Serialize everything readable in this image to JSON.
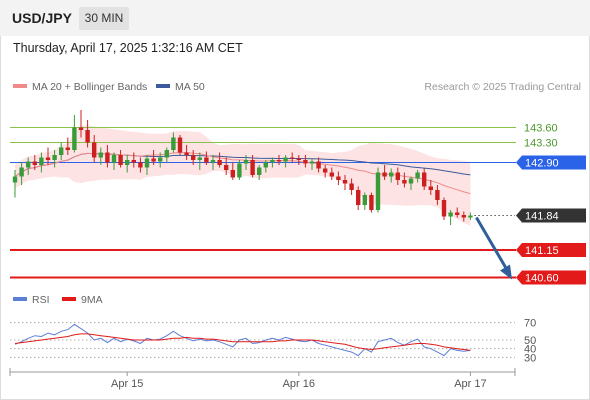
{
  "header": {
    "pair": "USD/JPY",
    "timeframe": "30 MIN",
    "timestamp": "Thursday, April 17, 2025 1:32:16 AM CET"
  },
  "colors": {
    "candle_up": "#3a9b3a",
    "candle_down": "#cc2020",
    "ma20": "#f08a8a",
    "bollinger_fill": "#fde3e3",
    "ma50": "#3d5a9c",
    "rsi": "#5b7fd6",
    "rsi_ma": "#e31a1a",
    "resistance_green": "#8bc34a",
    "pivot_blue": "#2a62e8",
    "support_red": "#e31a1a",
    "arrow": "#2f5f9a",
    "current_price_label": "#333333"
  },
  "chart_data": [
    {
      "type": "candlestick",
      "title": "USD/JPY 30 MIN",
      "legend": [
        {
          "name": "MA 20 + Bollinger Bands",
          "color": "#f08a8a"
        },
        {
          "name": "MA 50",
          "color": "#3d5a9c"
        }
      ],
      "source": "Research © 2025 Trading Central",
      "x_labels": [
        "Apr 15",
        "Apr 16",
        "Apr 17"
      ],
      "ylim": [
        140.45,
        144.15
      ],
      "candles": [
        [
          142.5,
          142.75,
          142.2,
          142.62
        ],
        [
          142.62,
          142.9,
          142.45,
          142.8
        ],
        [
          142.8,
          143.0,
          142.65,
          142.92
        ],
        [
          142.92,
          143.05,
          142.75,
          142.85
        ],
        [
          142.85,
          143.1,
          142.7,
          143.0
        ],
        [
          143.0,
          143.2,
          142.85,
          142.95
        ],
        [
          142.95,
          143.15,
          142.8,
          143.05
        ],
        [
          143.05,
          143.3,
          142.95,
          143.2
        ],
        [
          143.2,
          143.4,
          143.05,
          143.15
        ],
        [
          143.15,
          143.85,
          143.1,
          143.6
        ],
        [
          143.6,
          143.95,
          143.4,
          143.55
        ],
        [
          143.55,
          143.75,
          143.2,
          143.3
        ],
        [
          143.3,
          143.45,
          142.9,
          143.0
        ],
        [
          143.0,
          143.2,
          142.85,
          143.1
        ],
        [
          143.1,
          143.25,
          142.8,
          142.9
        ],
        [
          142.9,
          143.1,
          142.75,
          143.05
        ],
        [
          143.05,
          143.15,
          142.8,
          142.85
        ],
        [
          142.85,
          143.05,
          142.7,
          142.95
        ],
        [
          142.95,
          143.1,
          142.8,
          142.9
        ],
        [
          142.9,
          143.0,
          142.7,
          142.8
        ],
        [
          142.8,
          143.05,
          142.65,
          142.98
        ],
        [
          142.98,
          143.15,
          142.85,
          142.92
        ],
        [
          142.92,
          143.1,
          142.8,
          143.0
        ],
        [
          143.0,
          143.2,
          142.9,
          143.15
        ],
        [
          143.15,
          143.5,
          143.1,
          143.4
        ],
        [
          143.4,
          143.45,
          143.05,
          143.1
        ],
        [
          143.1,
          143.25,
          142.95,
          143.05
        ],
        [
          143.05,
          143.15,
          142.85,
          142.95
        ],
        [
          142.95,
          143.1,
          142.75,
          143.0
        ],
        [
          143.0,
          143.12,
          142.85,
          142.9
        ],
        [
          142.9,
          143.05,
          142.75,
          142.95
        ],
        [
          142.95,
          143.1,
          142.8,
          142.85
        ],
        [
          142.85,
          143.0,
          142.65,
          142.75
        ],
        [
          142.75,
          142.9,
          142.55,
          142.6
        ],
        [
          142.6,
          142.95,
          142.55,
          142.88
        ],
        [
          142.88,
          143.05,
          142.75,
          142.95
        ],
        [
          142.95,
          143.05,
          142.6,
          142.65
        ],
        [
          142.65,
          142.85,
          142.55,
          142.8
        ],
        [
          142.8,
          142.95,
          142.7,
          142.9
        ],
        [
          142.9,
          143.0,
          142.8,
          142.95
        ],
        [
          142.95,
          143.05,
          142.85,
          142.92
        ],
        [
          142.92,
          143.05,
          142.8,
          143.0
        ],
        [
          143.0,
          143.1,
          142.9,
          142.98
        ],
        [
          142.98,
          143.05,
          142.85,
          142.95
        ],
        [
          142.95,
          143.05,
          142.8,
          142.88
        ],
        [
          142.88,
          142.98,
          142.75,
          142.92
        ],
        [
          142.92,
          143.0,
          142.7,
          142.78
        ],
        [
          142.78,
          142.85,
          142.6,
          142.7
        ],
        [
          142.7,
          142.8,
          142.55,
          142.62
        ],
        [
          142.62,
          142.72,
          142.45,
          142.55
        ],
        [
          142.55,
          142.65,
          142.35,
          142.48
        ],
        [
          142.48,
          142.58,
          142.25,
          142.35
        ],
        [
          142.35,
          142.42,
          141.95,
          142.05
        ],
        [
          142.05,
          142.3,
          141.95,
          142.25
        ],
        [
          142.25,
          142.3,
          141.9,
          141.95
        ],
        [
          141.95,
          142.8,
          141.9,
          142.7
        ],
        [
          142.7,
          142.85,
          142.55,
          142.62
        ],
        [
          142.62,
          142.78,
          142.5,
          142.7
        ],
        [
          142.7,
          142.8,
          142.45,
          142.55
        ],
        [
          142.55,
          142.7,
          142.4,
          142.48
        ],
        [
          142.48,
          142.62,
          142.35,
          142.58
        ],
        [
          142.58,
          142.75,
          142.5,
          142.7
        ],
        [
          142.7,
          142.78,
          142.35,
          142.42
        ],
        [
          142.42,
          142.55,
          142.25,
          142.35
        ],
        [
          142.35,
          142.45,
          142.05,
          142.15
        ],
        [
          142.15,
          142.2,
          141.75,
          141.82
        ],
        [
          141.82,
          141.95,
          141.65,
          141.9
        ],
        [
          141.9,
          142.0,
          141.8,
          141.85
        ],
        [
          141.85,
          141.92,
          141.72,
          141.8
        ],
        [
          141.8,
          141.9,
          141.75,
          141.84
        ]
      ],
      "price_levels": [
        {
          "value": 143.6,
          "label": "143.60",
          "color": "#8bc34a"
        },
        {
          "value": 143.3,
          "label": "143.30",
          "color": "#8bc34a"
        },
        {
          "value": 142.9,
          "label": "142.90",
          "color": "#2a62e8"
        },
        {
          "value": 141.84,
          "label": "141.84",
          "color": "#333333"
        },
        {
          "value": 141.15,
          "label": "141.15",
          "color": "#e31a1a"
        },
        {
          "value": 140.6,
          "label": "140.60",
          "color": "#e31a1a"
        }
      ],
      "forecast_arrow": {
        "from": 141.84,
        "to": 140.6
      }
    },
    {
      "type": "line",
      "title": "",
      "legend": [
        {
          "name": "RSI",
          "color": "#5b7fd6"
        },
        {
          "name": "9MA",
          "color": "#e31a1a"
        }
      ],
      "ylim": [
        20,
        80
      ],
      "ticks": [
        70,
        50,
        40,
        30
      ],
      "series": [
        {
          "name": "RSI",
          "values": [
            45,
            48,
            52,
            55,
            54,
            58,
            56,
            60,
            62,
            68,
            63,
            58,
            50,
            52,
            47,
            52,
            48,
            51,
            49,
            46,
            52,
            50,
            51,
            55,
            60,
            55,
            52,
            49,
            51,
            49,
            50,
            48,
            45,
            42,
            50,
            52,
            46,
            47,
            50,
            52,
            50,
            53,
            51,
            49,
            48,
            50,
            46,
            44,
            42,
            40,
            38,
            36,
            32,
            40,
            36,
            48,
            50,
            52,
            47,
            44,
            48,
            51,
            42,
            40,
            36,
            32,
            40,
            38,
            37,
            38
          ]
        },
        {
          "name": "9MA",
          "values": [
            46,
            47,
            48,
            49,
            50,
            51,
            52,
            53,
            54,
            56,
            57,
            57,
            56,
            55,
            54,
            53,
            52,
            51,
            50,
            50,
            50,
            50,
            50,
            51,
            52,
            52,
            53,
            52,
            52,
            51,
            51,
            50,
            49,
            48,
            48,
            48,
            48,
            48,
            48,
            48,
            49,
            49,
            50,
            50,
            50,
            50,
            49,
            48,
            47,
            46,
            45,
            43,
            41,
            40,
            39,
            40,
            41,
            42,
            43,
            44,
            45,
            46,
            46,
            45,
            44,
            42,
            41,
            40,
            39,
            38
          ]
        }
      ]
    }
  ]
}
